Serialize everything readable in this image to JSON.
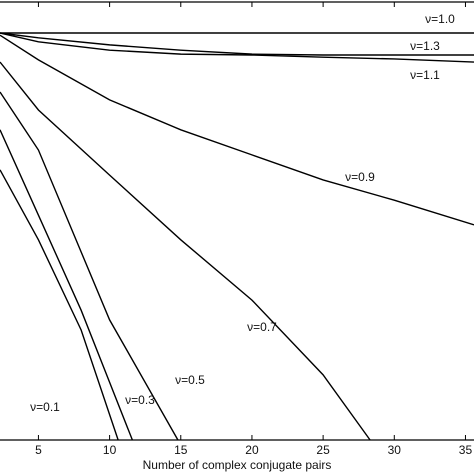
{
  "chart_data": {
    "type": "line",
    "x_label": "Number of complex conjugate pairs",
    "xlim": [
      2.3,
      35.6
    ],
    "xticks": [
      5,
      10,
      15,
      20,
      25,
      30,
      35
    ],
    "ylim": [
      0,
      1
    ],
    "series": [
      {
        "name": "ν=1.0",
        "color": "#000000",
        "x": [
          2.3,
          35.6
        ],
        "values": [
          0.925,
          0.925
        ]
      },
      {
        "name": "ν=1.3",
        "color": "#000000",
        "x": [
          2.3,
          5,
          10,
          15,
          20,
          25,
          30,
          35.6
        ],
        "values": [
          0.925,
          0.914,
          0.898,
          0.886,
          0.877,
          0.875,
          0.875,
          0.875
        ]
      },
      {
        "name": "ν=1.1",
        "color": "#000000",
        "x": [
          2.3,
          5,
          10,
          15,
          20,
          25,
          30,
          35.6
        ],
        "values": [
          0.925,
          0.905,
          0.886,
          0.877,
          0.875,
          0.87,
          0.866,
          0.859
        ]
      },
      {
        "name": "ν=0.9",
        "color": "#000000",
        "x": [
          2.3,
          5,
          10,
          15,
          20,
          25,
          30,
          35.6
        ],
        "values": [
          0.92,
          0.864,
          0.773,
          0.705,
          0.648,
          0.591,
          0.545,
          0.489
        ]
      },
      {
        "name": "ν=0.7",
        "color": "#000000",
        "x": [
          2.3,
          5,
          10,
          15,
          20,
          25,
          28.3
        ],
        "values": [
          0.859,
          0.75,
          0.602,
          0.455,
          0.318,
          0.148,
          0
        ]
      },
      {
        "name": "ν=0.5",
        "color": "#000000",
        "x": [
          2.3,
          5,
          10,
          14.8
        ],
        "values": [
          0.791,
          0.659,
          0.273,
          0
        ]
      },
      {
        "name": "ν=0.3",
        "color": "#000000",
        "x": [
          2.3,
          5,
          8,
          11.6
        ],
        "values": [
          0.705,
          0.511,
          0.295,
          0
        ]
      },
      {
        "name": "ν=0.1",
        "color": "#000000",
        "x": [
          2.3,
          5,
          8,
          10.6
        ],
        "values": [
          0.614,
          0.455,
          0.25,
          0
        ]
      }
    ]
  }
}
